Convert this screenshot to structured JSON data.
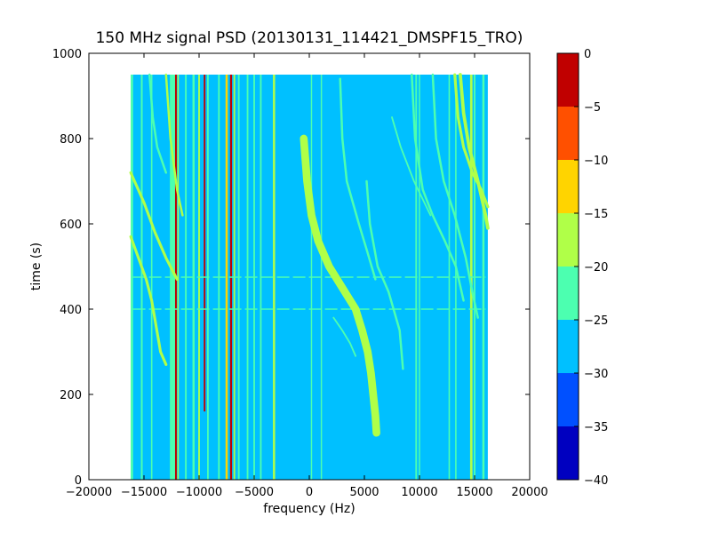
{
  "chart_data": {
    "type": "heatmap",
    "title": "150 MHz signal PSD (20130131_114421_DMSPF15_TRO)",
    "xlabel": "frequency (Hz)",
    "ylabel": "time (s)",
    "xlim": [
      -20000,
      20000
    ],
    "ylim": [
      0,
      1000
    ],
    "xticks": [
      -20000,
      -15000,
      -10000,
      -5000,
      0,
      5000,
      10000,
      15000,
      20000
    ],
    "xtick_labels": [
      "−20000",
      "−15000",
      "−10000",
      "−5000",
      "0",
      "5000",
      "10000",
      "15000",
      "20000"
    ],
    "yticks": [
      0,
      200,
      400,
      600,
      800,
      1000
    ],
    "ytick_labels": [
      "0",
      "200",
      "400",
      "600",
      "800",
      "1000"
    ],
    "data_extent": {
      "x": [
        -16200,
        16200
      ],
      "y": [
        0,
        950
      ]
    },
    "background_level": -27.5,
    "colorbar": {
      "range": [
        -40,
        0
      ],
      "ticks": [
        0,
        -5,
        -10,
        -15,
        -20,
        -25,
        -30,
        -35,
        -40
      ],
      "tick_labels": [
        "0",
        "−5",
        "−10",
        "−15",
        "−20",
        "−25",
        "−30",
        "−35",
        "−40"
      ],
      "levels": [
        {
          "from": -40,
          "to": -35,
          "color": "#0000c0"
        },
        {
          "from": -35,
          "to": -30,
          "color": "#0050ff"
        },
        {
          "from": -30,
          "to": -25,
          "color": "#00c0ff"
        },
        {
          "from": -25,
          "to": -20,
          "color": "#4cffb0"
        },
        {
          "from": -20,
          "to": -15,
          "color": "#b0ff48"
        },
        {
          "from": -15,
          "to": -10,
          "color": "#ffd400"
        },
        {
          "from": -10,
          "to": -5,
          "color": "#ff5000"
        },
        {
          "from": -5,
          "to": 0,
          "color": "#c00000"
        }
      ]
    },
    "vertical_lines": [
      {
        "x": -16100,
        "y0": 0,
        "y1": 950,
        "level": -22.5,
        "width": 220
      },
      {
        "x": -15200,
        "y0": 0,
        "y1": 950,
        "level": -22.5,
        "width": 160
      },
      {
        "x": -14300,
        "y0": 0,
        "y1": 950,
        "level": -22.5,
        "width": 130
      },
      {
        "x": -12400,
        "y0": 0,
        "y1": 950,
        "level": -22.5,
        "width": 500
      },
      {
        "x": -12100,
        "y0": 0,
        "y1": 950,
        "level": -2.5,
        "width": 160
      },
      {
        "x": -11900,
        "y0": 0,
        "y1": 950,
        "level": -17.5,
        "width": 120
      },
      {
        "x": -11200,
        "y0": 0,
        "y1": 950,
        "level": -22.5,
        "width": 150
      },
      {
        "x": -10500,
        "y0": 0,
        "y1": 950,
        "level": -22.5,
        "width": 200
      },
      {
        "x": -10000,
        "y0": 0,
        "y1": 950,
        "level": -17.5,
        "width": 150
      },
      {
        "x": -9500,
        "y0": 160,
        "y1": 950,
        "level": -2.5,
        "width": 150
      },
      {
        "x": -9200,
        "y0": 0,
        "y1": 950,
        "level": -22.5,
        "width": 150
      },
      {
        "x": -8200,
        "y0": 0,
        "y1": 950,
        "level": -22.5,
        "width": 150
      },
      {
        "x": -7500,
        "y0": 0,
        "y1": 950,
        "level": -12.5,
        "width": 200
      },
      {
        "x": -7100,
        "y0": 0,
        "y1": 950,
        "level": -2.5,
        "width": 180
      },
      {
        "x": -6800,
        "y0": 0,
        "y1": 950,
        "level": -17.5,
        "width": 150
      },
      {
        "x": -6400,
        "y0": 0,
        "y1": 950,
        "level": -22.5,
        "width": 150
      },
      {
        "x": -5600,
        "y0": 0,
        "y1": 950,
        "level": -22.5,
        "width": 150
      },
      {
        "x": -5000,
        "y0": 0,
        "y1": 950,
        "level": -22.5,
        "width": 150
      },
      {
        "x": -4400,
        "y0": 0,
        "y1": 950,
        "level": -22.5,
        "width": 150
      },
      {
        "x": -3200,
        "y0": 0,
        "y1": 950,
        "level": -17.5,
        "width": 200
      },
      {
        "x": 200,
        "y0": 0,
        "y1": 950,
        "level": -22.5,
        "width": 120
      },
      {
        "x": 1100,
        "y0": 0,
        "y1": 950,
        "level": -22.5,
        "width": 120
      },
      {
        "x": 9700,
        "y0": 0,
        "y1": 950,
        "level": -22.5,
        "width": 150
      },
      {
        "x": 10000,
        "y0": 0,
        "y1": 950,
        "level": -22.5,
        "width": 120
      },
      {
        "x": 12700,
        "y0": 0,
        "y1": 950,
        "level": -22.5,
        "width": 130
      },
      {
        "x": 13300,
        "y0": 0,
        "y1": 950,
        "level": -22.5,
        "width": 130
      },
      {
        "x": 14700,
        "y0": 0,
        "y1": 950,
        "level": -17.5,
        "width": 220
      },
      {
        "x": 15000,
        "y0": 0,
        "y1": 950,
        "level": -22.5,
        "width": 150
      },
      {
        "x": 15800,
        "y0": 0,
        "y1": 950,
        "level": -22.5,
        "width": 200
      }
    ],
    "horizontal_streaks": [
      {
        "y": 475,
        "x0": -16000,
        "x1": 16000,
        "level": -22.5
      },
      {
        "y": 400,
        "x0": -16000,
        "x1": 16000,
        "level": -22.5
      }
    ],
    "doppler_traces": [
      {
        "name": "main-doppler-trace",
        "level": -2.5,
        "width": 300,
        "points": [
          [
            -500,
            800
          ],
          [
            -200,
            700
          ],
          [
            200,
            620
          ],
          [
            800,
            560
          ],
          [
            1800,
            500
          ],
          [
            3000,
            450
          ],
          [
            4200,
            400
          ],
          [
            4800,
            350
          ],
          [
            5300,
            300
          ],
          [
            5600,
            250
          ],
          [
            5800,
            200
          ],
          [
            6000,
            150
          ],
          [
            6100,
            110
          ]
        ]
      },
      {
        "name": "main-doppler-trace-halo",
        "level": -17.5,
        "width": 700,
        "points": [
          [
            -500,
            800
          ],
          [
            -200,
            700
          ],
          [
            200,
            620
          ],
          [
            800,
            560
          ],
          [
            1800,
            500
          ],
          [
            3000,
            450
          ],
          [
            4200,
            400
          ],
          [
            4800,
            350
          ],
          [
            5300,
            300
          ],
          [
            5600,
            250
          ],
          [
            5800,
            200
          ],
          [
            6000,
            150
          ],
          [
            6100,
            110
          ]
        ]
      },
      {
        "name": "trace-left-1",
        "level": -17.5,
        "width": 250,
        "points": [
          [
            -16200,
            720
          ],
          [
            -15000,
            650
          ],
          [
            -14000,
            580
          ],
          [
            -13000,
            520
          ],
          [
            -12000,
            470
          ]
        ]
      },
      {
        "name": "trace-left-2",
        "level": -17.5,
        "width": 250,
        "points": [
          [
            -16200,
            570
          ],
          [
            -15500,
            520
          ],
          [
            -14800,
            470
          ],
          [
            -14300,
            420
          ],
          [
            -13500,
            300
          ],
          [
            -13000,
            270
          ]
        ]
      },
      {
        "name": "trace-left-3",
        "level": -17.5,
        "width": 200,
        "points": [
          [
            -13000,
            950
          ],
          [
            -12600,
            800
          ],
          [
            -12000,
            680
          ],
          [
            -11500,
            620
          ]
        ]
      },
      {
        "name": "trace-left-4",
        "level": -22.5,
        "width": 200,
        "points": [
          [
            -14500,
            950
          ],
          [
            -14200,
            850
          ],
          [
            -13800,
            780
          ],
          [
            -13000,
            720
          ]
        ]
      },
      {
        "name": "trace-mid-1",
        "level": -22.5,
        "width": 200,
        "points": [
          [
            2800,
            940
          ],
          [
            3000,
            800
          ],
          [
            3400,
            700
          ],
          [
            4500,
            600
          ],
          [
            5200,
            540
          ],
          [
            6000,
            470
          ]
        ]
      },
      {
        "name": "trace-mid-2",
        "level": -22.5,
        "width": 200,
        "points": [
          [
            5200,
            700
          ],
          [
            5500,
            600
          ],
          [
            6200,
            500
          ],
          [
            7200,
            440
          ],
          [
            8200,
            350
          ],
          [
            8500,
            260
          ]
        ]
      },
      {
        "name": "trace-mid-3",
        "level": -22.5,
        "width": 150,
        "points": [
          [
            2200,
            380
          ],
          [
            3000,
            350
          ],
          [
            3700,
            320
          ],
          [
            4200,
            290
          ]
        ]
      },
      {
        "name": "trace-mid-4",
        "level": -22.5,
        "width": 150,
        "points": [
          [
            7500,
            850
          ],
          [
            8300,
            780
          ],
          [
            9500,
            700
          ],
          [
            11000,
            620
          ]
        ]
      },
      {
        "name": "trace-right-1",
        "level": -22.5,
        "width": 200,
        "points": [
          [
            9300,
            950
          ],
          [
            9600,
            800
          ],
          [
            10300,
            680
          ],
          [
            11200,
            620
          ],
          [
            12300,
            560
          ],
          [
            13300,
            500
          ],
          [
            14000,
            420
          ]
        ]
      },
      {
        "name": "trace-right-2",
        "level": -22.5,
        "width": 200,
        "points": [
          [
            11200,
            950
          ],
          [
            11500,
            800
          ],
          [
            12200,
            700
          ],
          [
            13200,
            620
          ],
          [
            14200,
            520
          ],
          [
            14800,
            440
          ],
          [
            15300,
            380
          ]
        ]
      },
      {
        "name": "trace-right-3",
        "level": -17.5,
        "width": 300,
        "points": [
          [
            13700,
            950
          ],
          [
            14000,
            860
          ],
          [
            14500,
            780
          ],
          [
            15300,
            700
          ],
          [
            16000,
            620
          ],
          [
            16200,
            590
          ]
        ]
      },
      {
        "name": "trace-right-4",
        "level": -17.5,
        "width": 250,
        "points": [
          [
            13200,
            950
          ],
          [
            13500,
            850
          ],
          [
            14000,
            780
          ],
          [
            14800,
            720
          ],
          [
            15600,
            680
          ],
          [
            16200,
            640
          ]
        ]
      }
    ]
  }
}
